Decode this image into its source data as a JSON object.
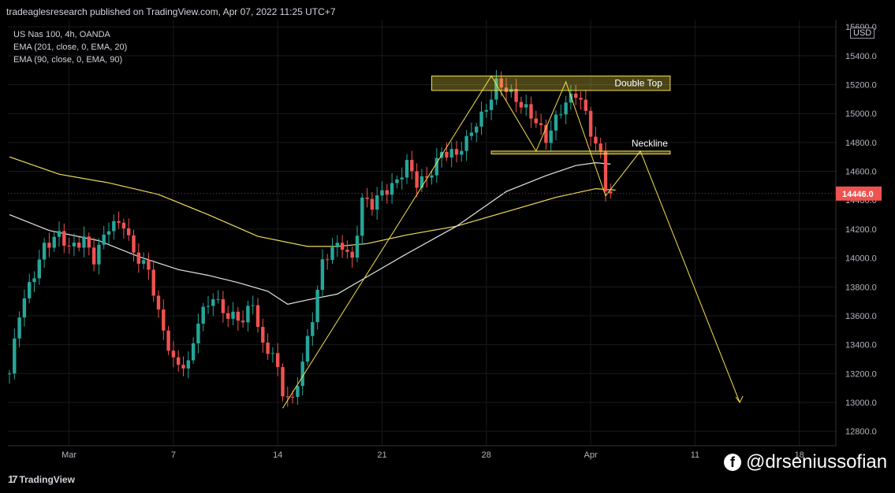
{
  "header": {
    "publisher_text": "tradeaglesresearch published on TradingView.com, Apr 07, 2022 11:25 UTC+7"
  },
  "legend": {
    "symbol": "US Nas 100, 4h, OANDA",
    "ema1": "EMA (201, close, 0, EMA, 20)",
    "ema2": "EMA (90, close, 0, EMA, 90)"
  },
  "axis": {
    "currency": "USD"
  },
  "footer": {
    "brand": "TradingView",
    "watermark": "@drseniussofian"
  },
  "colors": {
    "up": "#26a69a",
    "down": "#ef5350",
    "ema201": "#f0dc5a",
    "ema90": "#e6e6e6",
    "annotation": "#f5e04a",
    "last_price_bg": "#ef5350"
  },
  "chart_data": {
    "type": "candlestick",
    "symbol": "US Nas 100",
    "timeframe": "4h",
    "y_range": [
      12700,
      15650
    ],
    "y_ticks": [
      12800,
      13000,
      13200,
      13400,
      13600,
      13800,
      14000,
      14200,
      14400,
      14600,
      14800,
      15000,
      15200,
      15400,
      15600
    ],
    "y_tick_labels": [
      "12800.0",
      "13000.0",
      "13200.0",
      "13400.0",
      "13600.0",
      "13800.0",
      "14000.0",
      "14200.0",
      "14400.0",
      "14600.0",
      "14800.0",
      "15000.0",
      "15200.0",
      "15400.0",
      "15600.0"
    ],
    "x_ticks": [
      {
        "label": "Mar",
        "bar": 12
      },
      {
        "label": "7",
        "bar": 33
      },
      {
        "label": "14",
        "bar": 54
      },
      {
        "label": "21",
        "bar": 75
      },
      {
        "label": "28",
        "bar": 96
      },
      {
        "label": "Apr",
        "bar": 117
      },
      {
        "label": "11",
        "bar": 138
      },
      {
        "label": "18",
        "bar": 159
      }
    ],
    "last_price": 14446.0,
    "last_price_label": "14446.0",
    "anchors": [
      {
        "bar": 0,
        "price": 13200
      },
      {
        "bar": 2,
        "price": 13600
      },
      {
        "bar": 5,
        "price": 13900
      },
      {
        "bar": 7,
        "price": 14100
      },
      {
        "bar": 10,
        "price": 14150
      },
      {
        "bar": 12,
        "price": 14050
      },
      {
        "bar": 15,
        "price": 14150
      },
      {
        "bar": 17,
        "price": 14000
      },
      {
        "bar": 20,
        "price": 14200
      },
      {
        "bar": 23,
        "price": 14250
      },
      {
        "bar": 25,
        "price": 14050
      },
      {
        "bar": 28,
        "price": 13900
      },
      {
        "bar": 30,
        "price": 13600
      },
      {
        "bar": 33,
        "price": 13300
      },
      {
        "bar": 36,
        "price": 13250
      },
      {
        "bar": 38,
        "price": 13550
      },
      {
        "bar": 41,
        "price": 13750
      },
      {
        "bar": 44,
        "price": 13600
      },
      {
        "bar": 47,
        "price": 13550
      },
      {
        "bar": 49,
        "price": 13700
      },
      {
        "bar": 51,
        "price": 13400
      },
      {
        "bar": 53,
        "price": 13350
      },
      {
        "bar": 55,
        "price": 13050
      },
      {
        "bar": 57,
        "price": 13000
      },
      {
        "bar": 59,
        "price": 13300
      },
      {
        "bar": 61,
        "price": 13600
      },
      {
        "bar": 63,
        "price": 13950
      },
      {
        "bar": 65,
        "price": 14050
      },
      {
        "bar": 67,
        "price": 14100
      },
      {
        "bar": 69,
        "price": 14000
      },
      {
        "bar": 71,
        "price": 14400
      },
      {
        "bar": 73,
        "price": 14350
      },
      {
        "bar": 75,
        "price": 14450
      },
      {
        "bar": 78,
        "price": 14550
      },
      {
        "bar": 80,
        "price": 14650
      },
      {
        "bar": 82,
        "price": 14500
      },
      {
        "bar": 84,
        "price": 14550
      },
      {
        "bar": 87,
        "price": 14750
      },
      {
        "bar": 90,
        "price": 14700
      },
      {
        "bar": 92,
        "price": 14800
      },
      {
        "bar": 94,
        "price": 14950
      },
      {
        "bar": 96,
        "price": 15050
      },
      {
        "bar": 98,
        "price": 15200
      },
      {
        "bar": 100,
        "price": 15150
      },
      {
        "bar": 102,
        "price": 15100
      },
      {
        "bar": 104,
        "price": 15050
      },
      {
        "bar": 106,
        "price": 14950
      },
      {
        "bar": 108,
        "price": 14800
      },
      {
        "bar": 110,
        "price": 14950
      },
      {
        "bar": 112,
        "price": 15100
      },
      {
        "bar": 114,
        "price": 15150
      },
      {
        "bar": 115,
        "price": 15100
      },
      {
        "bar": 117,
        "price": 14850
      },
      {
        "bar": 119,
        "price": 14700
      },
      {
        "bar": 120,
        "price": 14500
      },
      {
        "bar": 121,
        "price": 14446
      }
    ],
    "ema201": [
      {
        "bar": 0,
        "price": 14700
      },
      {
        "bar": 10,
        "price": 14580
      },
      {
        "bar": 20,
        "price": 14520
      },
      {
        "bar": 30,
        "price": 14440
      },
      {
        "bar": 40,
        "price": 14300
      },
      {
        "bar": 50,
        "price": 14150
      },
      {
        "bar": 60,
        "price": 14080
      },
      {
        "bar": 66,
        "price": 14080
      },
      {
        "bar": 72,
        "price": 14100
      },
      {
        "bar": 80,
        "price": 14160
      },
      {
        "bar": 90,
        "price": 14220
      },
      {
        "bar": 100,
        "price": 14320
      },
      {
        "bar": 110,
        "price": 14420
      },
      {
        "bar": 118,
        "price": 14480
      },
      {
        "bar": 122,
        "price": 14470
      }
    ],
    "ema90": [
      {
        "bar": 0,
        "price": 14300
      },
      {
        "bar": 8,
        "price": 14190
      },
      {
        "bar": 18,
        "price": 14120
      },
      {
        "bar": 26,
        "price": 14010
      },
      {
        "bar": 34,
        "price": 13920
      },
      {
        "bar": 40,
        "price": 13880
      },
      {
        "bar": 46,
        "price": 13830
      },
      {
        "bar": 52,
        "price": 13770
      },
      {
        "bar": 56,
        "price": 13680
      },
      {
        "bar": 60,
        "price": 13710
      },
      {
        "bar": 66,
        "price": 13750
      },
      {
        "bar": 72,
        "price": 13870
      },
      {
        "bar": 80,
        "price": 14030
      },
      {
        "bar": 90,
        "price": 14220
      },
      {
        "bar": 100,
        "price": 14460
      },
      {
        "bar": 108,
        "price": 14570
      },
      {
        "bar": 114,
        "price": 14640
      },
      {
        "bar": 118,
        "price": 14660
      },
      {
        "bar": 121,
        "price": 14650
      }
    ],
    "annotations": {
      "double_top_label": "Double Top",
      "neckline_label": "Neckline",
      "zone": {
        "bar_start": 85,
        "bar_end": 133,
        "price_top": 15260,
        "price_bottom": 15160
      },
      "neckline": {
        "bar_start": 97,
        "bar_end": 133,
        "price_top": 14740,
        "price_bottom": 14720
      },
      "pattern_path": [
        {
          "bar": 55,
          "price": 12960
        },
        {
          "bar": 97,
          "price": 15260
        },
        {
          "bar": 106,
          "price": 14740
        },
        {
          "bar": 112,
          "price": 15220
        },
        {
          "bar": 120,
          "price": 14430
        },
        {
          "bar": 127,
          "price": 14740
        },
        {
          "bar": 147,
          "price": 13000
        }
      ]
    }
  }
}
